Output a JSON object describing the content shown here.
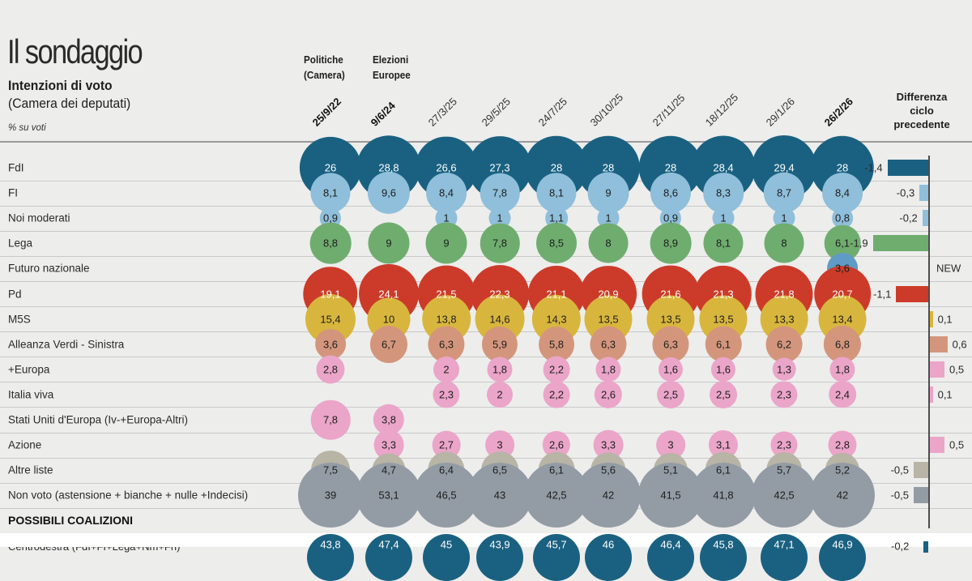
{
  "header": {
    "title": "Il sondaggio",
    "subtitle_bold": "Intenzioni di voto",
    "subtitle": "(Camera dei deputati)",
    "unit_note": "% su voti",
    "col_group_1": [
      "Politiche",
      "(Camera)"
    ],
    "col_group_2": [
      "Elezioni",
      "Europee"
    ],
    "diff_head": [
      "Differenza",
      "ciclo",
      "precedente"
    ]
  },
  "colors": {
    "FdI": "#1a6181",
    "FI": "#8fbfda",
    "Lega": "#6fad6f",
    "FN": "#5f9bc4",
    "Pd": "#cc3b29",
    "M5S": "#d8b63e",
    "AVS": "#d3967c",
    "Europa": "#eba5c9",
    "IV": "#eba5c9",
    "SUE": "#eba5c9",
    "Azione": "#eba5c9",
    "Altre": "#b8b4a6",
    "Nonvoto": "#939ca4",
    "Coalition": "#1a6181"
  },
  "chart_data": {
    "type": "table",
    "title": "Il sondaggio",
    "subtitle": "Intenzioni di voto (Camera dei deputati)",
    "unit": "% su voti",
    "dates": [
      "25/9/22",
      "9/6/24",
      "27/3/25",
      "29/5/25",
      "24/7/25",
      "30/10/25",
      "27/11/25",
      "18/12/25",
      "29/1/26",
      "26/2/26"
    ],
    "bold_dates": [
      "25/9/22",
      "9/6/24",
      "26/2/26"
    ],
    "rows": [
      {
        "label": "FdI",
        "color_key": "FdI",
        "values": [
          "26",
          "28,8",
          "26,6",
          "27,3",
          "28",
          "28",
          "28",
          "28,4",
          "29,4",
          "28"
        ],
        "diff": -1.4,
        "diff_label": "-1,4"
      },
      {
        "label": "FI",
        "color_key": "FI",
        "values": [
          "8,1",
          "9,6",
          "8,4",
          "7,8",
          "8,1",
          "9",
          "8,6",
          "8,3",
          "8,7",
          "8,4"
        ],
        "diff": -0.3,
        "diff_label": "-0,3"
      },
      {
        "label": "Noi moderati",
        "color_key": "FI",
        "values": [
          "0,9",
          "",
          "1",
          "1",
          "1,1",
          "1",
          "0,9",
          "1",
          "1",
          "0,8"
        ],
        "diff": -0.2,
        "diff_label": "-0,2"
      },
      {
        "label": "Lega",
        "color_key": "Lega",
        "values": [
          "8,8",
          "9",
          "9",
          "7,8",
          "8,5",
          "8",
          "8,9",
          "8,1",
          "8",
          "6,1"
        ],
        "diff": -1.9,
        "diff_label": "-1,9"
      },
      {
        "label": "Futuro nazionale",
        "color_key": "FN",
        "values": [
          "",
          "",
          "",
          "",
          "",
          "",
          "",
          "",
          "",
          "3,6"
        ],
        "diff": null,
        "diff_label": "NEW"
      },
      {
        "label": "Pd",
        "color_key": "Pd",
        "values": [
          "19,1",
          "24,1",
          "21,5",
          "22,3",
          "21,1",
          "20,9",
          "21,6",
          "21,3",
          "21,8",
          "20,7"
        ],
        "diff": -1.1,
        "diff_label": "-1,1"
      },
      {
        "label": "M5S",
        "color_key": "M5S",
        "values": [
          "15,4",
          "10",
          "13,8",
          "14,6",
          "14,3",
          "13,5",
          "13,5",
          "13,5",
          "13,3",
          "13,4"
        ],
        "diff": 0.1,
        "diff_label": "0,1"
      },
      {
        "label": "Alleanza Verdi - Sinistra",
        "color_key": "AVS",
        "values": [
          "3,6",
          "6,7",
          "6,3",
          "5,9",
          "5,8",
          "6,3",
          "6,3",
          "6,1",
          "6,2",
          "6,8"
        ],
        "diff": 0.6,
        "diff_label": "0,6"
      },
      {
        "label": "+Europa",
        "color_key": "Europa",
        "values": [
          "2,8",
          "",
          "2",
          "1,8",
          "2,2",
          "1,8",
          "1,6",
          "1,6",
          "1,3",
          "1,8"
        ],
        "diff": 0.5,
        "diff_label": "0,5"
      },
      {
        "label": "Italia viva",
        "color_key": "IV",
        "values": [
          "",
          "",
          "2,3",
          "2",
          "2,2",
          "2,6",
          "2,5",
          "2,5",
          "2,3",
          "2,4"
        ],
        "diff": 0.1,
        "diff_label": "0,1"
      },
      {
        "label": "Stati Uniti d'Europa (Iv-+Europa-Altri)",
        "color_key": "SUE",
        "values": [
          "7,8",
          "3,8",
          "",
          "",
          "",
          "",
          "",
          "",
          "",
          ""
        ],
        "diff": null,
        "diff_label": ""
      },
      {
        "label": "Azione",
        "color_key": "Azione",
        "values": [
          "",
          "3,3",
          "2,7",
          "3",
          "2,6",
          "3,3",
          "3",
          "3,1",
          "2,3",
          "2,8"
        ],
        "diff": 0.5,
        "diff_label": "0,5"
      },
      {
        "label": "Altre liste",
        "color_key": "Altre",
        "values": [
          "7,5",
          "4,7",
          "6,4",
          "6,5",
          "6,1",
          "5,6",
          "5,1",
          "6,1",
          "5,7",
          "5,2"
        ],
        "diff": -0.5,
        "diff_label": "-0,5"
      },
      {
        "label": "Non voto (astensione + bianche + nulle +Indecisi)",
        "color_key": "Nonvoto",
        "values": [
          "39",
          "53,1",
          "46,5",
          "43",
          "42,5",
          "42",
          "41,5",
          "41,8",
          "42,5",
          "42"
        ],
        "diff": -0.5,
        "diff_label": "-0,5"
      }
    ],
    "section_label": "POSSIBILI COALIZIONI",
    "coalition_row": {
      "label": "Centrodestra (FdI+FI+Lega+Nm+Fn)",
      "color_key": "Coalition",
      "values": [
        "43,8",
        "47,4",
        "45",
        "43,9",
        "45,7",
        "46",
        "46,4",
        "45,8",
        "47,1",
        "46,9"
      ],
      "diff": -0.2,
      "diff_label": "-0,2"
    }
  }
}
